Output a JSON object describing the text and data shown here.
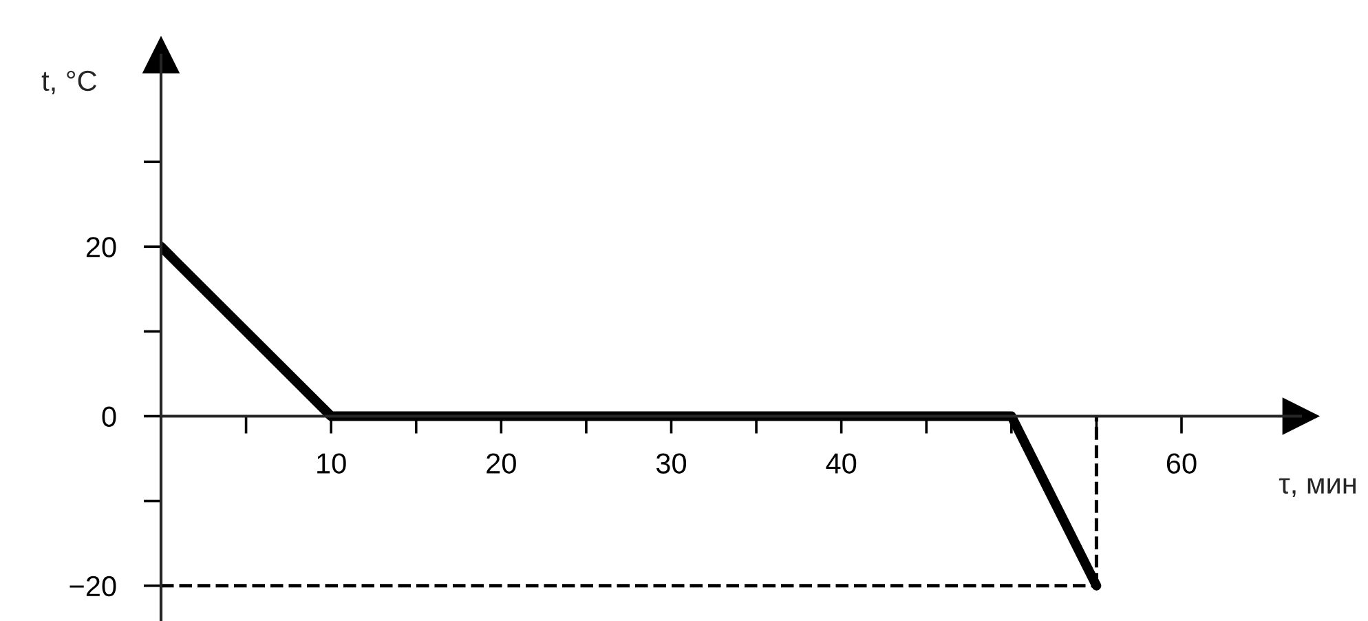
{
  "chart_data": {
    "type": "line",
    "xlabel": "τ, мин",
    "ylabel": "t, °C",
    "x": [
      0,
      10,
      50,
      55
    ],
    "series": [
      {
        "color": "#000000",
        "values": [
          20,
          0,
          0,
          -20
        ]
      }
    ],
    "xlim": [
      0,
      67
    ],
    "ylim": [
      -24,
      42.6
    ],
    "xticks": [
      {
        "value": 5,
        "label": null
      },
      10,
      {
        "value": 15,
        "label": null
      },
      20,
      {
        "value": 25,
        "label": null
      },
      30,
      {
        "value": 35,
        "label": null
      },
      40,
      {
        "value": 45,
        "label": null
      },
      {
        "value": 50,
        "label": null
      },
      {
        "value": 55,
        "label": null
      },
      60
    ],
    "yticks": [
      {
        "value": -20,
        "label": "−20"
      },
      {
        "value": -10,
        "label": null
      },
      0,
      {
        "value": 10,
        "label": null
      },
      20,
      {
        "value": 30,
        "label": null
      }
    ],
    "ref_lines": [
      {
        "axis": "y",
        "value": -20,
        "line_style": "dashed",
        "color": "#000000"
      },
      {
        "axis": "x",
        "value": 55,
        "line_style": "dashed",
        "color": "#000000"
      }
    ],
    "grid": false,
    "legend": false,
    "marker": "none",
    "line_style": "solid"
  }
}
